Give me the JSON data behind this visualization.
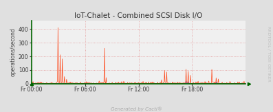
{
  "title": "IoT-Chalet - Combined SCSI Disk I/O",
  "ylabel": "operations/second",
  "watermark": "RRDTOOL / TOBI OETIKER",
  "footer": "Generated by Cacti®",
  "bg_color": "#e0e0e0",
  "plot_bg_color": "#f0f0f0",
  "grid_color": "#e08080",
  "line1_color": "#ff3300",
  "line2_color": "#0000bb",
  "title_color": "#333333",
  "axis_color": "#006600",
  "yticks": [
    0,
    100,
    200,
    300,
    400
  ],
  "ylim": [
    0,
    460
  ],
  "xtick_labels": [
    "Fr 00:00",
    "Fr 06:00",
    "Fr 12:00",
    "Fr 18:00"
  ],
  "n_points": 500,
  "seed": 7,
  "spikes1_locs": [
    62,
    67,
    72,
    77,
    82,
    170,
    174,
    310,
    315,
    360,
    365,
    370,
    420,
    430,
    435
  ],
  "spikes1_vals": [
    410,
    200,
    180,
    50,
    30,
    258,
    40,
    95,
    85,
    105,
    90,
    60,
    100,
    40,
    25
  ],
  "spikes2_locs": [
    360,
    365,
    430
  ],
  "spikes2_vals": [
    20,
    15,
    12
  ]
}
